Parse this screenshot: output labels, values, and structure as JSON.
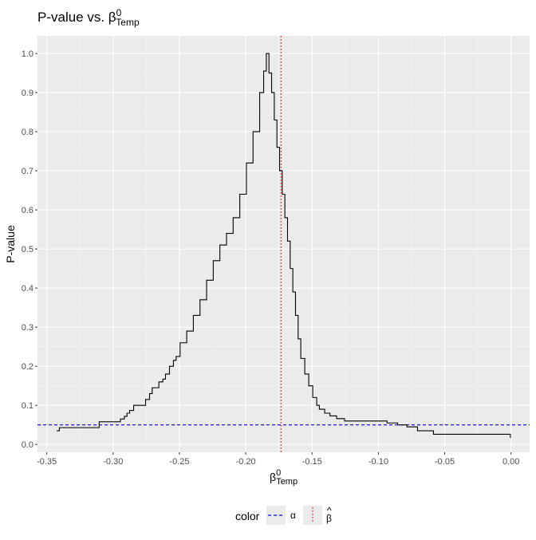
{
  "chart_data": {
    "type": "line",
    "title": {
      "main": "P-value vs. β",
      "sup": "0",
      "sub": "Temp"
    },
    "xlabel": {
      "main": "β",
      "sup": "0",
      "sub": "Temp"
    },
    "ylabel": "P-value",
    "xlim": [
      -0.357,
      0.014
    ],
    "ylim": [
      -0.02,
      1.045
    ],
    "xticks": [
      -0.35,
      -0.3,
      -0.25,
      -0.2,
      -0.15,
      -0.1,
      -0.05,
      0.0
    ],
    "xtick_labels": [
      "-0.35",
      "-0.30",
      "-0.25",
      "-0.20",
      "-0.15",
      "-0.10",
      "-0.05",
      "0.00"
    ],
    "yticks": [
      0.0,
      0.1,
      0.2,
      0.3,
      0.4,
      0.5,
      0.6,
      0.7,
      0.8,
      0.9,
      1.0
    ],
    "ytick_labels": [
      "0.0",
      "0.1",
      "0.2",
      "0.3",
      "0.4",
      "0.5",
      "0.6",
      "0.7",
      "0.8",
      "0.9",
      "1.0"
    ],
    "grid": true,
    "legend_position": "bottom",
    "series": [
      {
        "color": "#000000",
        "style": "step",
        "x": [
          -0.3425,
          -0.3405,
          -0.3325,
          -0.3105,
          -0.2945,
          -0.2915,
          -0.2895,
          -0.2875,
          -0.2845,
          -0.2795,
          -0.2755,
          -0.2725,
          -0.2705,
          -0.2655,
          -0.2625,
          -0.2605,
          -0.2575,
          -0.2545,
          -0.2525,
          -0.2495,
          -0.2445,
          -0.2395,
          -0.2345,
          -0.2295,
          -0.2245,
          -0.2195,
          -0.2145,
          -0.2095,
          -0.2045,
          -0.1995,
          -0.1945,
          -0.1895,
          -0.1865,
          -0.1845,
          -0.1825,
          -0.1805,
          -0.1785,
          -0.1765,
          -0.1745,
          -0.1725,
          -0.1705,
          -0.1685,
          -0.1665,
          -0.1645,
          -0.1625,
          -0.1605,
          -0.1585,
          -0.1555,
          -0.1525,
          -0.1495,
          -0.1465,
          -0.1445,
          -0.1405,
          -0.1365,
          -0.1315,
          -0.1255,
          -0.1185,
          -0.1105,
          -0.0935,
          -0.0855,
          -0.0785,
          -0.0705,
          -0.0585,
          -0.0005
        ],
        "y": [
          0.035,
          0.043,
          0.043,
          0.058,
          0.065,
          0.072,
          0.08,
          0.087,
          0.1,
          0.1,
          0.115,
          0.13,
          0.145,
          0.16,
          0.167,
          0.18,
          0.2,
          0.215,
          0.225,
          0.26,
          0.29,
          0.33,
          0.37,
          0.42,
          0.47,
          0.51,
          0.54,
          0.58,
          0.64,
          0.72,
          0.8,
          0.9,
          0.955,
          1.0,
          0.95,
          0.9,
          0.83,
          0.76,
          0.7,
          0.64,
          0.58,
          0.52,
          0.45,
          0.39,
          0.33,
          0.27,
          0.22,
          0.18,
          0.15,
          0.12,
          0.1,
          0.09,
          0.08,
          0.073,
          0.066,
          0.06,
          0.06,
          0.06,
          0.055,
          0.05,
          0.045,
          0.035,
          0.026,
          0.017
        ]
      }
    ],
    "reference_lines": [
      {
        "orientation": "horizontal",
        "value": 0.05,
        "color": "#0000ff",
        "dash": "dashed"
      },
      {
        "orientation": "vertical",
        "value": -0.1735,
        "color": "#ff0000",
        "dash": "dotted"
      }
    ],
    "legend": {
      "title": "color",
      "items": [
        {
          "label": "α",
          "color": "#0000ff",
          "dash": "dashed"
        },
        {
          "label": "β",
          "hat": "^",
          "color": "#ff0000",
          "dash": "dotted"
        }
      ]
    },
    "colors": {
      "panel_background": "#ebebeb",
      "grid_major": "#ffffff",
      "grid_minor": "#f5f5f5"
    }
  }
}
